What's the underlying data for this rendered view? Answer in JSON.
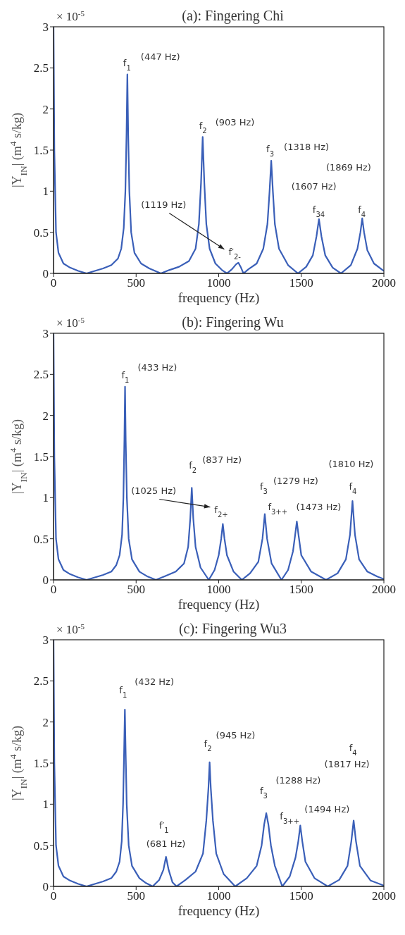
{
  "chart_data": [
    {
      "type": "line",
      "title": "(a): Fingering Chi",
      "xlabel": "frequency (Hz)",
      "ylabel": "|Y$_{IN}$| (m$^{4}$ s/kg)",
      "xlim": [
        0,
        2000
      ],
      "ylim": [
        0,
        3
      ],
      "xticks": [
        0,
        500,
        1000,
        1500,
        2000
      ],
      "yticks": [
        0,
        0.5,
        1,
        1.5,
        2,
        2.5,
        3
      ],
      "x": [
        0,
        5,
        15,
        30,
        60,
        100,
        150,
        200,
        250,
        300,
        350,
        390,
        410,
        425,
        435,
        442,
        447,
        452,
        459,
        470,
        490,
        530,
        580,
        650,
        700,
        760,
        820,
        860,
        880,
        893,
        903,
        913,
        925,
        945,
        980,
        1020,
        1050,
        1080,
        1105,
        1119,
        1135,
        1150,
        1180,
        1230,
        1270,
        1295,
        1308,
        1318,
        1328,
        1340,
        1365,
        1420,
        1480,
        1530,
        1570,
        1592,
        1607,
        1622,
        1645,
        1690,
        1740,
        1800,
        1840,
        1858,
        1869,
        1880,
        1900,
        1940,
        2000
      ],
      "series": [
        {
          "color": "#3a5fb8",
          "values": [
            3,
            1.5,
            0.5,
            0.25,
            0.12,
            0.07,
            0.03,
            0,
            0.03,
            0.06,
            0.1,
            0.18,
            0.3,
            0.55,
            1,
            1.7,
            2.42,
            1.7,
            1,
            0.5,
            0.25,
            0.12,
            0.06,
            0,
            0.04,
            0.08,
            0.15,
            0.3,
            0.6,
            1.1,
            1.66,
            1.1,
            0.6,
            0.3,
            0.12,
            0.04,
            0,
            0.05,
            0.11,
            0.13,
            0.07,
            0,
            0.05,
            0.12,
            0.3,
            0.6,
            1,
            1.37,
            1,
            0.6,
            0.3,
            0.1,
            0,
            0.08,
            0.22,
            0.45,
            0.66,
            0.45,
            0.22,
            0.07,
            0,
            0.1,
            0.3,
            0.5,
            0.67,
            0.5,
            0.28,
            0.12,
            0.03
          ]
        }
      ],
      "annotations": [
        "× 10$^{-5}$",
        {
          "text": "f$_{1}$",
          "x": 447,
          "y": 2.42
        },
        {
          "text": "(447 Hz)",
          "x": 447,
          "y": 2.42
        },
        {
          "text": "f$_{2}$",
          "x": 903,
          "y": 1.66
        },
        {
          "text": "(903 Hz)",
          "x": 903,
          "y": 1.66
        },
        {
          "text": "f$_{3}$",
          "x": 1318,
          "y": 1.37
        },
        {
          "text": "(1318 Hz)",
          "x": 1318,
          "y": 1.37
        },
        "(1869 Hz)",
        "(1607 Hz)",
        {
          "text": "f$_{34}$",
          "x": 1607,
          "y": 0.66
        },
        {
          "text": "f$_{4}$",
          "x": 1869,
          "y": 0.67
        },
        "(1119 Hz)",
        {
          "text": "f′$_{2-}$",
          "x": 1119,
          "y": 0.13
        }
      ]
    },
    {
      "type": "line",
      "title": "(b): Fingering Wu",
      "xlabel": "frequency (Hz)",
      "ylabel": "|Y$_{IN}$| (m$^{4}$ s/kg)",
      "xlim": [
        0,
        2000
      ],
      "ylim": [
        0,
        3
      ],
      "xticks": [
        0,
        500,
        1000,
        1500,
        2000
      ],
      "yticks": [
        0,
        0.5,
        1,
        1.5,
        2,
        2.5,
        3
      ],
      "x": [
        0,
        5,
        15,
        30,
        60,
        100,
        150,
        200,
        250,
        300,
        350,
        380,
        400,
        415,
        423,
        429,
        433,
        437,
        444,
        455,
        475,
        520,
        570,
        620,
        680,
        740,
        790,
        815,
        828,
        837,
        846,
        860,
        890,
        940,
        975,
        1000,
        1015,
        1025,
        1035,
        1050,
        1090,
        1140,
        1190,
        1240,
        1265,
        1279,
        1293,
        1320,
        1380,
        1420,
        1450,
        1463,
        1473,
        1483,
        1500,
        1560,
        1650,
        1720,
        1770,
        1795,
        1810,
        1825,
        1850,
        1900,
        1960,
        2000
      ],
      "series": [
        {
          "color": "#3a5fb8",
          "values": [
            3,
            1.5,
            0.5,
            0.25,
            0.12,
            0.07,
            0.03,
            0,
            0.03,
            0.06,
            0.1,
            0.18,
            0.3,
            0.55,
            1,
            1.7,
            2.35,
            1.7,
            1,
            0.5,
            0.25,
            0.1,
            0.04,
            0,
            0.05,
            0.1,
            0.2,
            0.4,
            0.75,
            1.12,
            0.75,
            0.4,
            0.15,
            0,
            0.12,
            0.3,
            0.5,
            0.68,
            0.5,
            0.3,
            0.1,
            0,
            0.08,
            0.22,
            0.5,
            0.8,
            0.5,
            0.2,
            0,
            0.12,
            0.35,
            0.55,
            0.71,
            0.55,
            0.3,
            0.1,
            0,
            0.08,
            0.25,
            0.55,
            0.96,
            0.55,
            0.25,
            0.1,
            0.04,
            0.01
          ]
        }
      ],
      "annotations": [
        "× 10$^{-5}$",
        {
          "text": "f$_{1}$",
          "x": 433,
          "y": 2.35
        },
        {
          "text": "(433 Hz)",
          "x": 433,
          "y": 2.35
        },
        {
          "text": "f$_{2}$",
          "x": 837,
          "y": 1.12
        },
        {
          "text": "(837 Hz)",
          "x": 837,
          "y": 1.12
        },
        "(1025 Hz)",
        {
          "text": "f$_{2+}$",
          "x": 1025,
          "y": 0.68
        },
        {
          "text": "f$_{3}$",
          "x": 1279,
          "y": 0.8
        },
        "(1279 Hz)",
        {
          "text": "f$_{3++}$",
          "x": 1473,
          "y": 0.71
        },
        {
          "text": "(1473 Hz)",
          "x": 1473,
          "y": 0.71
        },
        "(1810 Hz)",
        {
          "text": "f$_{4}$",
          "x": 1810,
          "y": 0.96
        }
      ]
    },
    {
      "type": "line",
      "title": "(c): Fingering Wu3",
      "xlabel": "frequency (Hz)",
      "ylabel": "|Y$_{IN}$| (m$^{4}$ s/kg)",
      "xlim": [
        0,
        2000
      ],
      "ylim": [
        0,
        3
      ],
      "xticks": [
        0,
        500,
        1000,
        1500,
        2000
      ],
      "yticks": [
        0,
        0.5,
        1,
        1.5,
        2,
        2.5,
        3
      ],
      "x": [
        0,
        5,
        15,
        30,
        60,
        100,
        150,
        200,
        250,
        300,
        350,
        380,
        400,
        413,
        421,
        427,
        432,
        437,
        443,
        455,
        475,
        520,
        560,
        600,
        640,
        665,
        681,
        697,
        720,
        745,
        800,
        860,
        905,
        925,
        938,
        945,
        952,
        965,
        985,
        1030,
        1100,
        1170,
        1230,
        1260,
        1275,
        1288,
        1301,
        1316,
        1340,
        1385,
        1430,
        1465,
        1482,
        1494,
        1506,
        1525,
        1580,
        1660,
        1730,
        1780,
        1803,
        1817,
        1831,
        1855,
        1920,
        2000
      ],
      "series": [
        {
          "color": "#3a5fb8",
          "values": [
            3,
            1.5,
            0.5,
            0.25,
            0.12,
            0.07,
            0.03,
            0,
            0.03,
            0.06,
            0.1,
            0.18,
            0.3,
            0.55,
            1,
            1.6,
            2.15,
            1.6,
            1,
            0.5,
            0.25,
            0.1,
            0.04,
            0,
            0.08,
            0.2,
            0.36,
            0.2,
            0.05,
            0,
            0.08,
            0.18,
            0.4,
            0.8,
            1.2,
            1.51,
            1.2,
            0.8,
            0.4,
            0.15,
            0,
            0.1,
            0.25,
            0.5,
            0.75,
            0.89,
            0.75,
            0.5,
            0.25,
            0,
            0.12,
            0.35,
            0.55,
            0.74,
            0.55,
            0.3,
            0.1,
            0,
            0.08,
            0.25,
            0.55,
            0.8,
            0.55,
            0.25,
            0.07,
            0.01
          ]
        }
      ],
      "annotations": [
        "× 10$^{-5}$",
        {
          "text": "f$_{1}$",
          "x": 432,
          "y": 2.15
        },
        {
          "text": "(432 Hz)",
          "x": 432,
          "y": 2.15
        },
        {
          "text": "f′$_{1}$",
          "x": 681,
          "y": 0.36
        },
        {
          "text": "(681 Hz)",
          "x": 681,
          "y": 0.36
        },
        {
          "text": "f$_{2}$",
          "x": 945,
          "y": 1.51
        },
        {
          "text": "(945 Hz)",
          "x": 945,
          "y": 1.51
        },
        "f$_{4}$",
        "(1817 Hz)",
        {
          "text": "f$_{3}$",
          "x": 1288,
          "y": 0.89
        },
        "(1288 Hz)",
        {
          "text": "f$_{3++}$",
          "x": 1494,
          "y": 0.74
        },
        {
          "text": "(1494 Hz)",
          "x": 1494,
          "y": 0.74
        }
      ]
    }
  ]
}
